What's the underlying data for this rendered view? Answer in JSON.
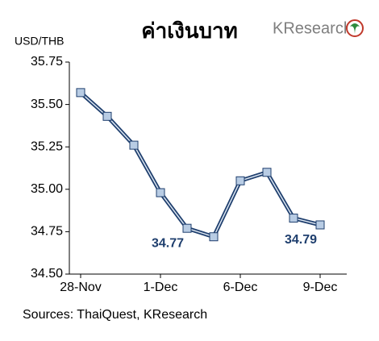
{
  "chart_data": {
    "type": "line",
    "title": "ค่าเงินบาท",
    "logo": "KResearch",
    "y_label": "USD/THB",
    "categories": [
      "28-Nov",
      null,
      null,
      "1-Dec",
      null,
      null,
      "6-Dec",
      null,
      null,
      "9-Dec"
    ],
    "series": [
      {
        "name": "USD/THB",
        "color": "#1f3f6e",
        "marker_color": "#b8cce4",
        "values": [
          35.57,
          35.43,
          35.26,
          34.98,
          34.77,
          34.72,
          35.05,
          35.1,
          34.83,
          34.79
        ],
        "value_labels": [
          null,
          null,
          null,
          null,
          "34.77",
          null,
          null,
          null,
          null,
          "34.79"
        ]
      }
    ],
    "ylim": [
      34.5,
      35.75
    ],
    "yticks": [
      {
        "value": 34.5,
        "label": "34.50"
      },
      {
        "value": 34.75,
        "label": "34.75"
      },
      {
        "value": 35,
        "label": "35.00"
      },
      {
        "value": 35.25,
        "label": "35.25"
      },
      {
        "value": 35.5,
        "label": "35.50"
      },
      {
        "value": 35.75,
        "label": "35.75"
      }
    ],
    "grid": false,
    "source": "Sources: ThaiQuest, KResearch"
  }
}
